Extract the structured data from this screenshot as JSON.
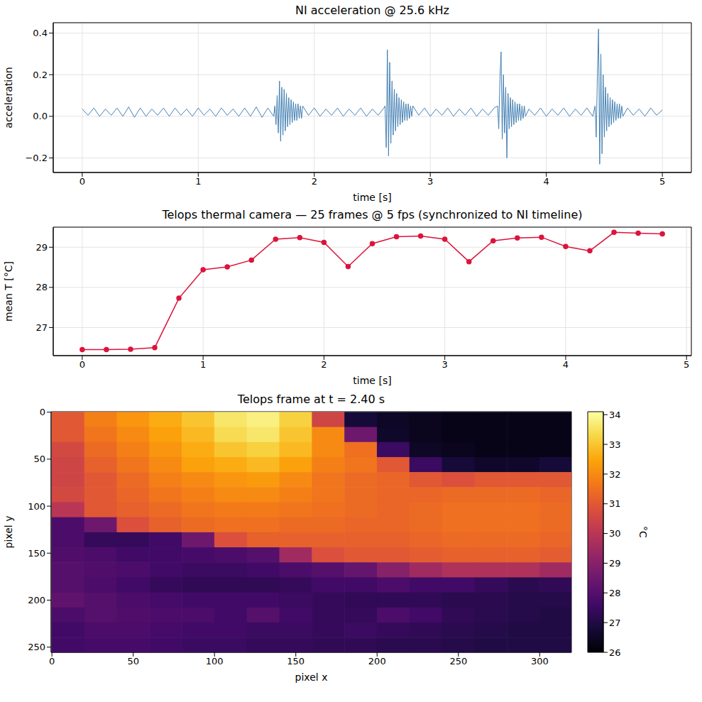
{
  "chart_data": [
    {
      "type": "line",
      "title": "NI acceleration @ 25.6 kHz",
      "xlabel": "time [s]",
      "ylabel": "acceleration",
      "color": "#4682b4",
      "grid": true,
      "xlim": [
        -0.25,
        5.25
      ],
      "xticks": [
        0,
        1,
        2,
        3,
        4,
        5
      ],
      "ylim": [
        -0.27,
        0.45
      ],
      "yticks": [
        {
          "value": -0.2,
          "label": "−0.2"
        },
        {
          "value": 0,
          "label": "0.0"
        },
        {
          "value": 0.2,
          "label": "0.2"
        },
        {
          "value": 0.4,
          "label": "0.4"
        }
      ],
      "x": [
        0,
        0.05,
        0.1,
        0.15,
        0.2,
        0.25,
        0.3,
        0.35,
        0.4,
        0.45,
        0.5,
        0.55,
        0.6,
        0.65,
        0.7,
        0.75,
        0.8,
        0.85,
        0.9,
        0.95,
        1,
        1.05,
        1.1,
        1.15,
        1.2,
        1.25,
        1.3,
        1.35,
        1.4,
        1.45,
        1.5,
        1.55,
        1.6,
        1.65,
        1.66,
        1.67,
        1.68,
        1.69,
        1.7,
        1.71,
        1.72,
        1.73,
        1.74,
        1.75,
        1.76,
        1.77,
        1.78,
        1.79,
        1.8,
        1.81,
        1.82,
        1.83,
        1.84,
        1.85,
        1.86,
        1.87,
        1.88,
        1.89,
        1.9,
        1.95,
        2,
        2.05,
        2.1,
        2.15,
        2.2,
        2.25,
        2.3,
        2.35,
        2.4,
        2.45,
        2.5,
        2.55,
        2.6,
        2.61,
        2.62,
        2.63,
        2.64,
        2.65,
        2.66,
        2.67,
        2.68,
        2.69,
        2.7,
        2.71,
        2.72,
        2.73,
        2.74,
        2.75,
        2.76,
        2.77,
        2.78,
        2.79,
        2.8,
        2.81,
        2.82,
        2.83,
        2.84,
        2.85,
        2.9,
        2.95,
        3,
        3.05,
        3.1,
        3.15,
        3.2,
        3.25,
        3.3,
        3.35,
        3.4,
        3.45,
        3.5,
        3.55,
        3.58,
        3.59,
        3.6,
        3.61,
        3.62,
        3.63,
        3.64,
        3.65,
        3.66,
        3.67,
        3.68,
        3.69,
        3.7,
        3.71,
        3.72,
        3.73,
        3.74,
        3.75,
        3.76,
        3.77,
        3.78,
        3.79,
        3.8,
        3.81,
        3.82,
        3.85,
        3.9,
        3.95,
        4,
        4.05,
        4.1,
        4.15,
        4.2,
        4.25,
        4.3,
        4.35,
        4.4,
        4.42,
        4.43,
        4.44,
        4.45,
        4.46,
        4.47,
        4.48,
        4.49,
        4.5,
        4.51,
        4.52,
        4.53,
        4.54,
        4.55,
        4.56,
        4.57,
        4.58,
        4.59,
        4.6,
        4.61,
        4.62,
        4.63,
        4.64,
        4.65,
        4.66,
        4.7,
        4.75,
        4.8,
        4.85,
        4.9,
        4.95,
        5
      ],
      "values": [
        0.035,
        0.005,
        0.04,
        0.0,
        0.035,
        0.005,
        0.04,
        0.0,
        0.045,
        -0.005,
        0.04,
        0.0,
        0.035,
        0.005,
        0.04,
        0.0,
        0.04,
        0.005,
        0.035,
        0.0,
        0.04,
        0.005,
        0.035,
        0.0,
        0.04,
        0.005,
        0.035,
        0.0,
        0.04,
        0.0,
        0.045,
        -0.005,
        0.04,
        0.0,
        0.05,
        -0.04,
        0.1,
        -0.08,
        0.17,
        -0.12,
        0.14,
        -0.09,
        0.13,
        -0.07,
        0.11,
        -0.05,
        0.09,
        -0.04,
        0.08,
        -0.03,
        0.07,
        -0.02,
        0.06,
        -0.02,
        0.06,
        -0.01,
        0.05,
        -0.01,
        0.05,
        0.005,
        0.04,
        0.0,
        0.035,
        0.005,
        0.04,
        0.0,
        0.035,
        0.005,
        0.04,
        0.0,
        0.035,
        0.005,
        0.04,
        0.05,
        -0.15,
        0.32,
        -0.19,
        0.26,
        -0.13,
        0.17,
        -0.09,
        0.13,
        -0.07,
        0.11,
        -0.05,
        0.09,
        -0.04,
        0.08,
        -0.03,
        0.07,
        -0.02,
        0.06,
        -0.02,
        0.06,
        -0.01,
        0.05,
        0.0,
        0.05,
        0.005,
        0.04,
        0.0,
        0.035,
        0.005,
        0.04,
        0.0,
        0.035,
        0.005,
        0.04,
        0.0,
        0.035,
        0.005,
        0.04,
        0.05,
        -0.06,
        0.18,
        0.31,
        -0.11,
        0.2,
        -0.08,
        0.14,
        -0.2,
        0.11,
        -0.06,
        0.09,
        -0.05,
        0.08,
        -0.04,
        0.07,
        -0.03,
        0.06,
        -0.02,
        0.06,
        -0.02,
        0.05,
        -0.01,
        0.05,
        0.0,
        0.035,
        0.005,
        0.04,
        0.0,
        0.035,
        0.005,
        0.04,
        0.0,
        0.035,
        0.005,
        0.04,
        0.0,
        0.05,
        -0.1,
        0.2,
        0.42,
        -0.23,
        0.3,
        -0.18,
        0.2,
        -0.1,
        0.14,
        -0.07,
        0.11,
        -0.05,
        0.09,
        -0.04,
        0.08,
        -0.03,
        0.07,
        -0.02,
        0.06,
        -0.01,
        0.06,
        -0.01,
        0.05,
        0.0,
        0.04,
        0.005,
        0.035,
        0.0,
        0.04,
        0.005,
        0.03
      ]
    },
    {
      "type": "line",
      "title": "Telops thermal camera  —  25 frames @ 5 fps  (synchronized to NI timeline)",
      "xlabel": "time [s]",
      "ylabel": "mean T [°C]",
      "color": "#dc143c",
      "marker": "o",
      "grid": true,
      "xlim": [
        -0.24,
        5.04
      ],
      "xticks": [
        0,
        1,
        2,
        3,
        4,
        5
      ],
      "ylim": [
        26.3,
        29.5
      ],
      "yticks": [
        27,
        28,
        29
      ],
      "x": [
        0,
        0.2,
        0.4,
        0.6,
        0.8,
        1,
        1.2,
        1.4,
        1.6,
        1.8,
        2,
        2.2,
        2.4,
        2.6,
        2.8,
        3,
        3.2,
        3.4,
        3.6,
        3.8,
        4,
        4.2,
        4.4,
        4.6,
        4.8
      ],
      "values": [
        26.45,
        26.45,
        26.46,
        26.5,
        27.73,
        28.44,
        28.51,
        28.68,
        29.2,
        29.24,
        29.12,
        28.52,
        29.09,
        29.26,
        29.28,
        29.2,
        28.64,
        29.16,
        29.23,
        29.25,
        29.02,
        28.91,
        29.37,
        29.35,
        29.33
      ]
    },
    {
      "type": "heatmap",
      "title": "Telops frame at t = 2.40 s",
      "xlabel": "pixel x",
      "ylabel": "pixel y",
      "xlim": [
        -0.5,
        319.5
      ],
      "xticks": [
        0,
        50,
        100,
        150,
        200,
        250,
        300
      ],
      "ylim": [
        255.5,
        -0.5
      ],
      "yticks": [
        0,
        50,
        100,
        150,
        200,
        250
      ],
      "colorbar_lim": [
        26.0,
        34.1
      ],
      "colorbar_ticks": [
        26,
        27,
        28,
        29,
        30,
        31,
        32,
        33,
        34
      ],
      "colorbar_label": "°C",
      "x": [
        10,
        30,
        50,
        70,
        90,
        110,
        130,
        150,
        170,
        190,
        210,
        230,
        250,
        270,
        290,
        310
      ],
      "y": [
        8,
        24,
        40,
        56,
        72,
        88,
        104,
        120,
        136,
        152,
        168,
        184,
        200,
        216,
        232,
        248
      ],
      "z": [
        [
          31.0,
          31.8,
          32.2,
          32.6,
          33.0,
          33.6,
          33.8,
          33.2,
          30.5,
          26.8,
          26.5,
          26.4,
          26.3,
          26.3,
          26.3,
          26.3
        ],
        [
          31.0,
          31.6,
          32.0,
          32.4,
          32.8,
          33.4,
          33.6,
          33.0,
          32.0,
          28.5,
          26.6,
          26.4,
          26.3,
          26.3,
          26.3,
          26.3
        ],
        [
          30.6,
          31.4,
          31.8,
          32.2,
          32.6,
          33.0,
          33.2,
          32.8,
          32.0,
          31.5,
          27.5,
          26.5,
          26.4,
          26.3,
          26.3,
          26.3
        ],
        [
          30.5,
          31.2,
          31.6,
          32.0,
          32.4,
          32.6,
          32.8,
          32.4,
          31.8,
          31.6,
          31.0,
          27.5,
          26.8,
          26.6,
          26.6,
          26.8
        ],
        [
          30.5,
          31.0,
          31.4,
          31.8,
          32.0,
          32.2,
          32.3,
          32.0,
          31.6,
          31.4,
          31.3,
          31.0,
          30.8,
          31.0,
          31.0,
          31.0
        ],
        [
          30.6,
          31.0,
          31.3,
          31.6,
          31.8,
          32.0,
          32.0,
          31.8,
          31.6,
          31.4,
          31.3,
          31.3,
          31.4,
          31.4,
          31.4,
          31.3
        ],
        [
          30.0,
          31.0,
          31.2,
          31.4,
          31.6,
          31.7,
          31.7,
          31.6,
          31.5,
          31.4,
          31.3,
          31.4,
          31.5,
          31.5,
          31.5,
          31.4
        ],
        [
          27.8,
          28.5,
          30.8,
          31.2,
          31.4,
          31.5,
          31.5,
          31.4,
          31.4,
          31.3,
          31.3,
          31.4,
          31.5,
          31.5,
          31.5,
          31.4
        ],
        [
          27.8,
          27.4,
          27.4,
          27.6,
          28.5,
          30.8,
          31.2,
          31.2,
          31.2,
          31.2,
          31.2,
          31.3,
          31.4,
          31.4,
          31.4,
          31.3
        ],
        [
          27.9,
          27.8,
          27.6,
          27.6,
          27.7,
          27.8,
          28.0,
          29.5,
          30.8,
          31.0,
          31.0,
          31.1,
          31.2,
          31.2,
          31.2,
          31.1
        ],
        [
          28.0,
          27.9,
          27.8,
          27.6,
          27.5,
          27.5,
          27.6,
          27.8,
          28.0,
          28.3,
          29.0,
          29.5,
          29.8,
          29.8,
          29.8,
          29.5
        ],
        [
          28.0,
          27.8,
          27.6,
          27.4,
          27.3,
          27.3,
          27.3,
          27.4,
          27.6,
          27.6,
          27.8,
          27.6,
          27.6,
          27.4,
          27.2,
          27.3
        ],
        [
          28.2,
          28.0,
          27.8,
          27.7,
          27.6,
          27.6,
          27.6,
          27.5,
          27.4,
          27.3,
          27.3,
          27.3,
          27.2,
          27.2,
          27.1,
          27.1
        ],
        [
          27.8,
          28.0,
          27.9,
          27.8,
          27.8,
          27.6,
          28.0,
          27.6,
          27.4,
          27.4,
          27.8,
          27.6,
          27.3,
          27.2,
          27.1,
          27.0
        ],
        [
          27.6,
          27.8,
          27.8,
          27.7,
          27.6,
          27.6,
          27.5,
          27.5,
          27.4,
          27.5,
          27.4,
          27.3,
          27.2,
          27.1,
          27.0,
          27.0
        ],
        [
          27.6,
          27.7,
          27.7,
          27.6,
          27.5,
          27.5,
          27.4,
          27.4,
          27.3,
          27.3,
          27.2,
          27.2,
          27.1,
          27.0,
          27.0,
          27.0
        ]
      ]
    }
  ]
}
